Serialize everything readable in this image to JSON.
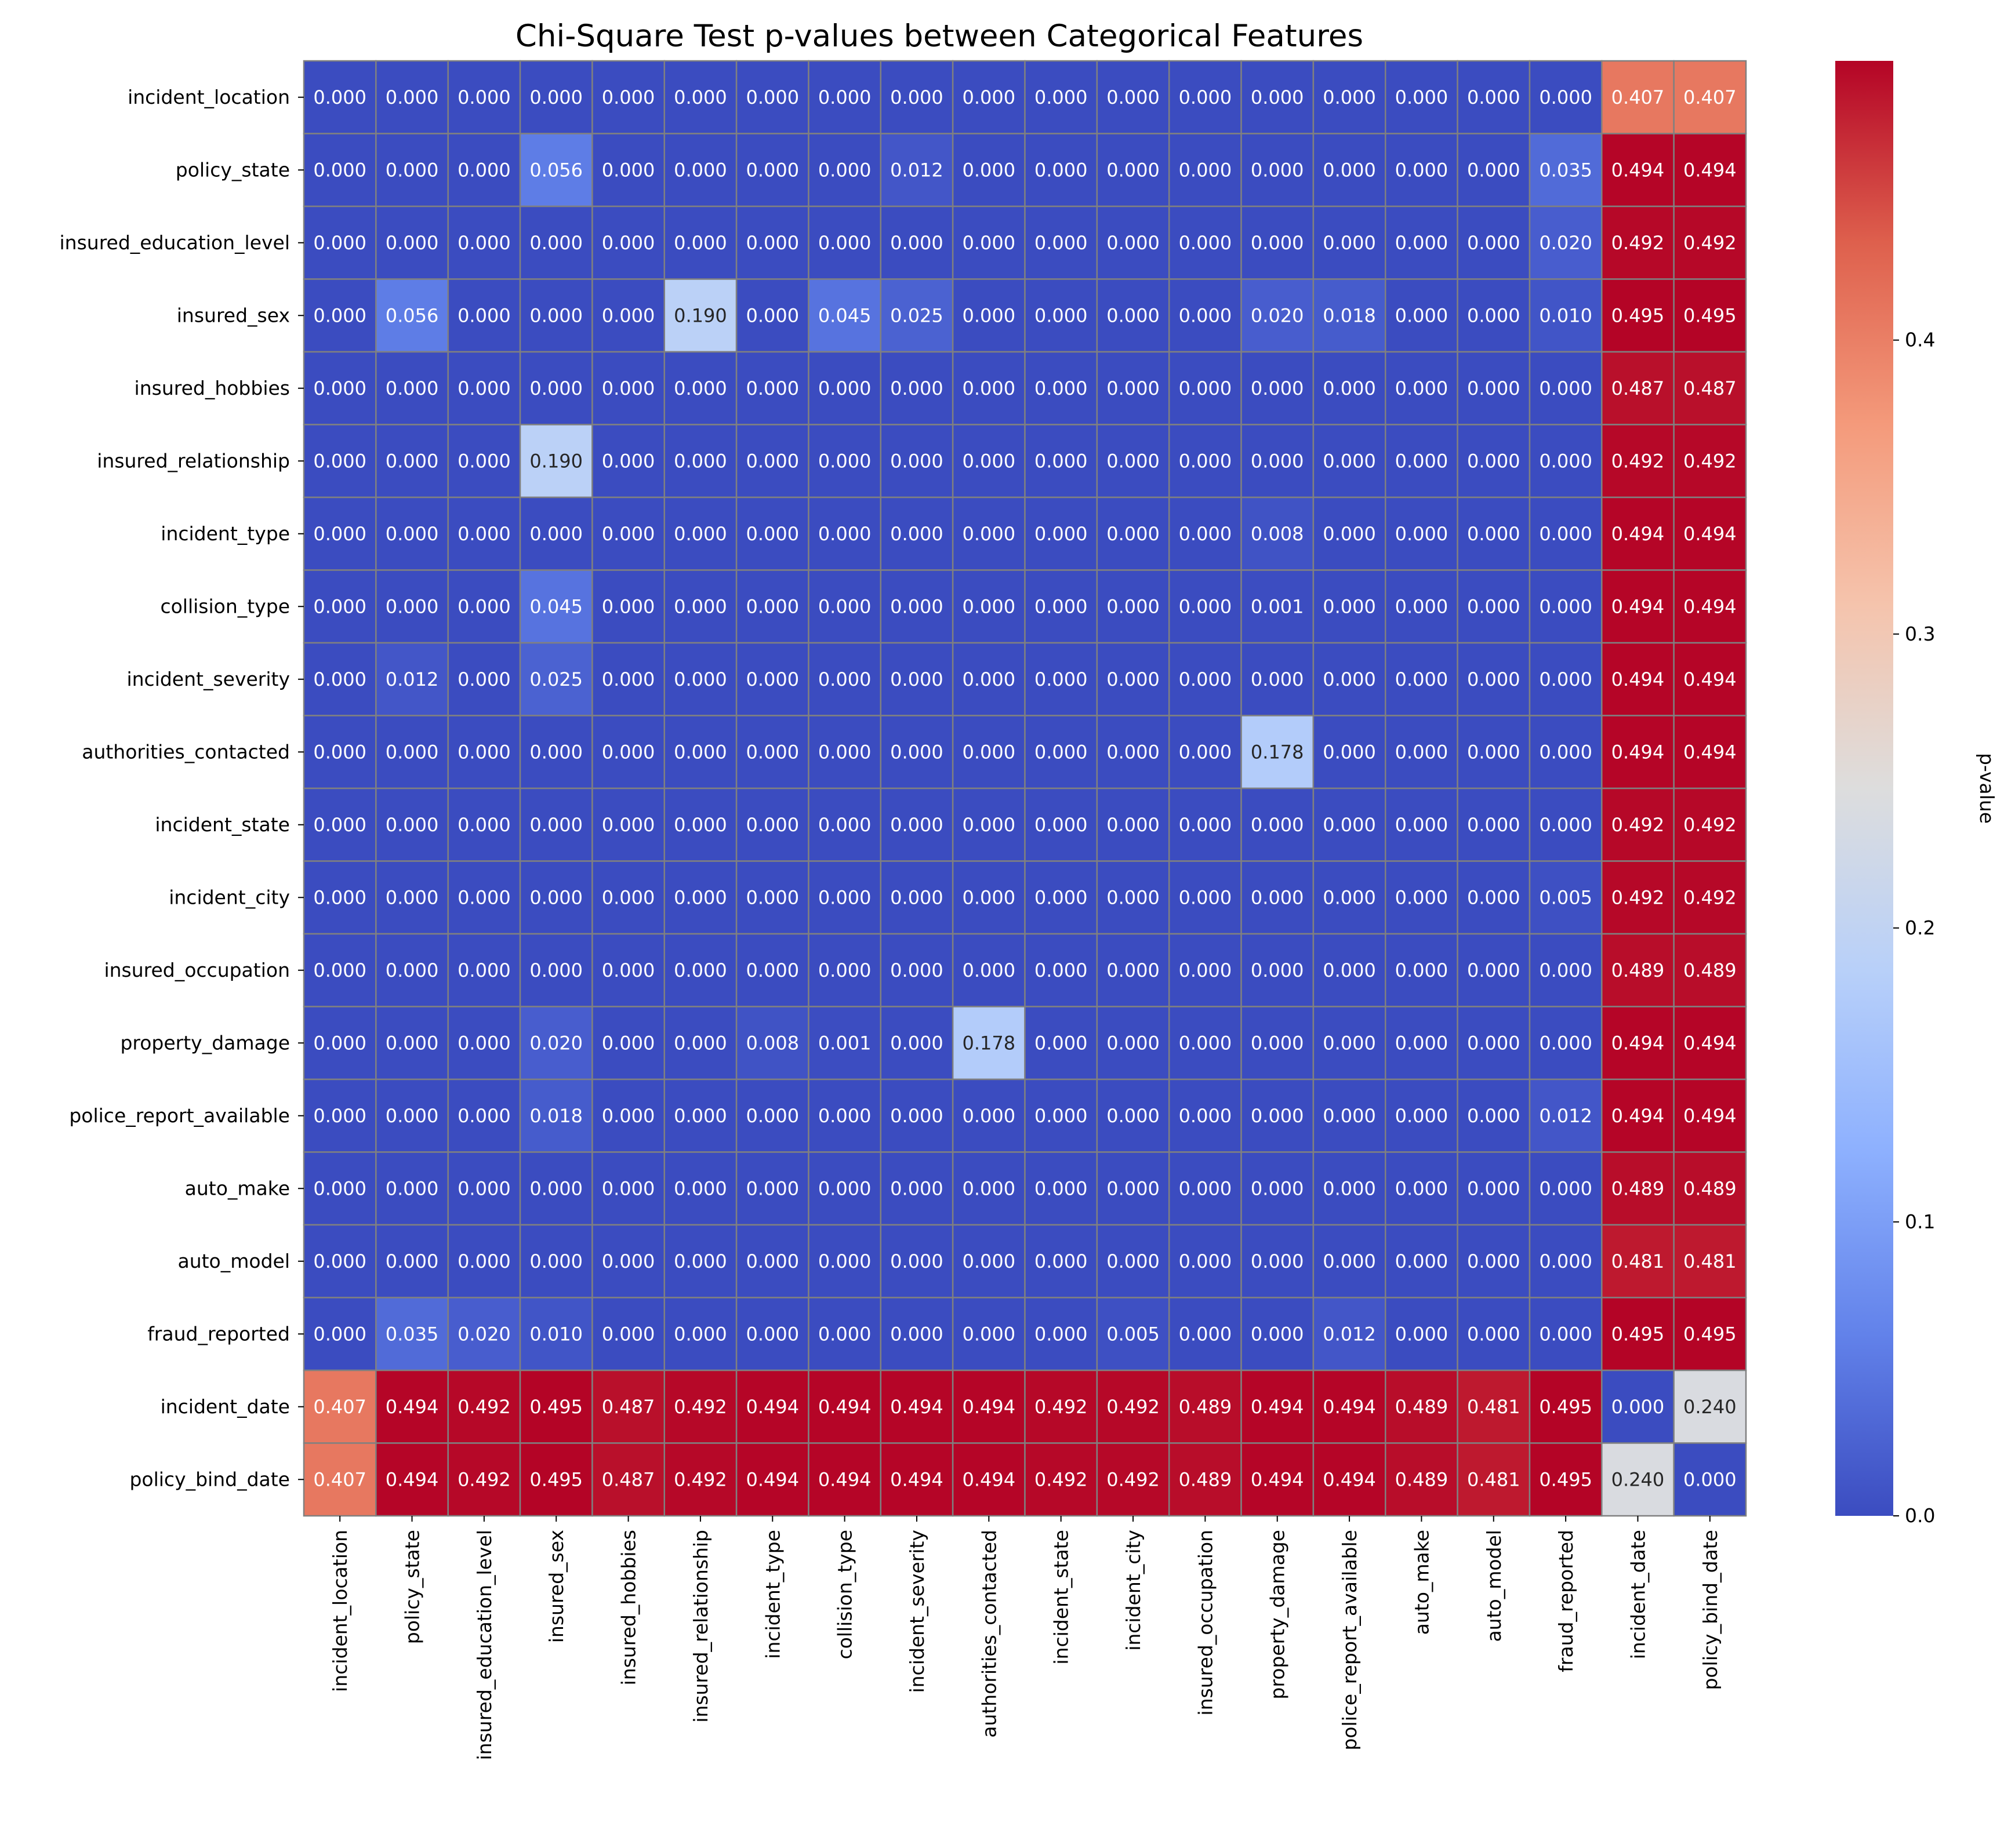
{
  "chart_data": {
    "type": "heatmap",
    "title": "Chi-Square Test p-values between Categorical Features",
    "xlabel": "",
    "ylabel": "",
    "colormap": "coolwarm",
    "value_format": "3 decimals",
    "rows": [
      "incident_location",
      "policy_state",
      "insured_education_level",
      "insured_sex",
      "insured_hobbies",
      "insured_relationship",
      "incident_type",
      "collision_type",
      "incident_severity",
      "authorities_contacted",
      "incident_state",
      "incident_city",
      "insured_occupation",
      "property_damage",
      "police_report_available",
      "auto_make",
      "auto_model",
      "fraud_reported",
      "incident_date",
      "policy_bind_date"
    ],
    "columns": [
      "incident_location",
      "policy_state",
      "insured_education_level",
      "insured_sex",
      "insured_hobbies",
      "insured_relationship",
      "incident_type",
      "collision_type",
      "incident_severity",
      "authorities_contacted",
      "incident_state",
      "incident_city",
      "insured_occupation",
      "property_damage",
      "police_report_available",
      "auto_make",
      "auto_model",
      "fraud_reported",
      "incident_date",
      "policy_bind_date"
    ],
    "values": [
      [
        0.0,
        0.0,
        0.0,
        0.0,
        0.0,
        0.0,
        0.0,
        0.0,
        0.0,
        0.0,
        0.0,
        0.0,
        0.0,
        0.0,
        0.0,
        0.0,
        0.0,
        0.0,
        0.407,
        0.407
      ],
      [
        0.0,
        0.0,
        0.0,
        0.056,
        0.0,
        0.0,
        0.0,
        0.0,
        0.012,
        0.0,
        0.0,
        0.0,
        0.0,
        0.0,
        0.0,
        0.0,
        0.0,
        0.035,
        0.494,
        0.494
      ],
      [
        0.0,
        0.0,
        0.0,
        0.0,
        0.0,
        0.0,
        0.0,
        0.0,
        0.0,
        0.0,
        0.0,
        0.0,
        0.0,
        0.0,
        0.0,
        0.0,
        0.0,
        0.02,
        0.492,
        0.492
      ],
      [
        0.0,
        0.056,
        0.0,
        0.0,
        0.0,
        0.19,
        0.0,
        0.045,
        0.025,
        0.0,
        0.0,
        0.0,
        0.0,
        0.02,
        0.018,
        0.0,
        0.0,
        0.01,
        0.495,
        0.495
      ],
      [
        0.0,
        0.0,
        0.0,
        0.0,
        0.0,
        0.0,
        0.0,
        0.0,
        0.0,
        0.0,
        0.0,
        0.0,
        0.0,
        0.0,
        0.0,
        0.0,
        0.0,
        0.0,
        0.487,
        0.487
      ],
      [
        0.0,
        0.0,
        0.0,
        0.19,
        0.0,
        0.0,
        0.0,
        0.0,
        0.0,
        0.0,
        0.0,
        0.0,
        0.0,
        0.0,
        0.0,
        0.0,
        0.0,
        0.0,
        0.492,
        0.492
      ],
      [
        0.0,
        0.0,
        0.0,
        0.0,
        0.0,
        0.0,
        0.0,
        0.0,
        0.0,
        0.0,
        0.0,
        0.0,
        0.0,
        0.008,
        0.0,
        0.0,
        0.0,
        0.0,
        0.494,
        0.494
      ],
      [
        0.0,
        0.0,
        0.0,
        0.045,
        0.0,
        0.0,
        0.0,
        0.0,
        0.0,
        0.0,
        0.0,
        0.0,
        0.0,
        0.001,
        0.0,
        0.0,
        0.0,
        0.0,
        0.494,
        0.494
      ],
      [
        0.0,
        0.012,
        0.0,
        0.025,
        0.0,
        0.0,
        0.0,
        0.0,
        0.0,
        0.0,
        0.0,
        0.0,
        0.0,
        0.0,
        0.0,
        0.0,
        0.0,
        0.0,
        0.494,
        0.494
      ],
      [
        0.0,
        0.0,
        0.0,
        0.0,
        0.0,
        0.0,
        0.0,
        0.0,
        0.0,
        0.0,
        0.0,
        0.0,
        0.0,
        0.178,
        0.0,
        0.0,
        0.0,
        0.0,
        0.494,
        0.494
      ],
      [
        0.0,
        0.0,
        0.0,
        0.0,
        0.0,
        0.0,
        0.0,
        0.0,
        0.0,
        0.0,
        0.0,
        0.0,
        0.0,
        0.0,
        0.0,
        0.0,
        0.0,
        0.0,
        0.492,
        0.492
      ],
      [
        0.0,
        0.0,
        0.0,
        0.0,
        0.0,
        0.0,
        0.0,
        0.0,
        0.0,
        0.0,
        0.0,
        0.0,
        0.0,
        0.0,
        0.0,
        0.0,
        0.0,
        0.005,
        0.492,
        0.492
      ],
      [
        0.0,
        0.0,
        0.0,
        0.0,
        0.0,
        0.0,
        0.0,
        0.0,
        0.0,
        0.0,
        0.0,
        0.0,
        0.0,
        0.0,
        0.0,
        0.0,
        0.0,
        0.0,
        0.489,
        0.489
      ],
      [
        0.0,
        0.0,
        0.0,
        0.02,
        0.0,
        0.0,
        0.008,
        0.001,
        0.0,
        0.178,
        0.0,
        0.0,
        0.0,
        0.0,
        0.0,
        0.0,
        0.0,
        0.0,
        0.494,
        0.494
      ],
      [
        0.0,
        0.0,
        0.0,
        0.018,
        0.0,
        0.0,
        0.0,
        0.0,
        0.0,
        0.0,
        0.0,
        0.0,
        0.0,
        0.0,
        0.0,
        0.0,
        0.0,
        0.012,
        0.494,
        0.494
      ],
      [
        0.0,
        0.0,
        0.0,
        0.0,
        0.0,
        0.0,
        0.0,
        0.0,
        0.0,
        0.0,
        0.0,
        0.0,
        0.0,
        0.0,
        0.0,
        0.0,
        0.0,
        0.0,
        0.489,
        0.489
      ],
      [
        0.0,
        0.0,
        0.0,
        0.0,
        0.0,
        0.0,
        0.0,
        0.0,
        0.0,
        0.0,
        0.0,
        0.0,
        0.0,
        0.0,
        0.0,
        0.0,
        0.0,
        0.0,
        0.481,
        0.481
      ],
      [
        0.0,
        0.035,
        0.02,
        0.01,
        0.0,
        0.0,
        0.0,
        0.0,
        0.0,
        0.0,
        0.0,
        0.005,
        0.0,
        0.0,
        0.012,
        0.0,
        0.0,
        0.0,
        0.495,
        0.495
      ],
      [
        0.407,
        0.494,
        0.492,
        0.495,
        0.487,
        0.492,
        0.494,
        0.494,
        0.494,
        0.494,
        0.492,
        0.492,
        0.489,
        0.494,
        0.494,
        0.489,
        0.481,
        0.495,
        0.0,
        0.24
      ],
      [
        0.407,
        0.494,
        0.492,
        0.495,
        0.487,
        0.492,
        0.494,
        0.494,
        0.494,
        0.494,
        0.492,
        0.492,
        0.489,
        0.494,
        0.494,
        0.489,
        0.481,
        0.495,
        0.24,
        0.0
      ]
    ],
    "colorbar": {
      "label": "p-value",
      "range": [
        0,
        0.495
      ],
      "ticks": [
        0.0,
        0.1,
        0.2,
        0.3,
        0.4
      ],
      "tick_labels": [
        "0.0",
        "0.1",
        "0.2",
        "0.3",
        "0.4"
      ]
    },
    "cell_border_color": "#808080",
    "grid": false,
    "legend": "colorbar right"
  }
}
